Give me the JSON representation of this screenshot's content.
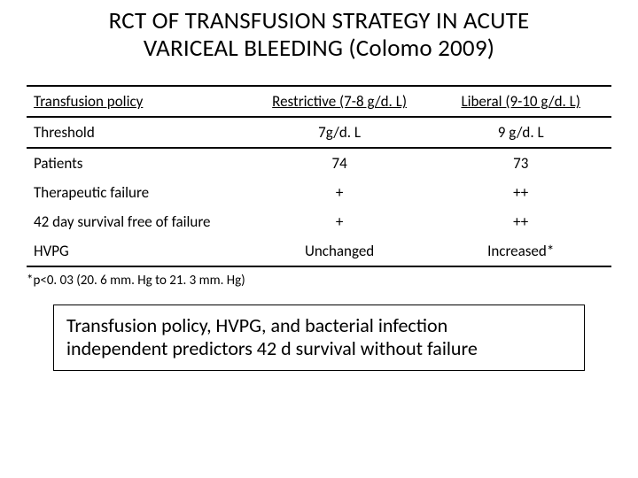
{
  "title_line1": "RCT OF TRANSFUSION STRATEGY IN ACUTE",
  "title_line2": "VARICEAL BLEEDING (Colomo 2009)",
  "table": {
    "header": {
      "c0": "Transfusion policy",
      "c1": "Restrictive (7-8 g/d. L)",
      "c2": "Liberal (9-10 g/d. L)"
    },
    "rows": [
      {
        "c0": "Threshold",
        "c1": "7g/d. L",
        "c2": "9 g/d. L",
        "cls": "row-threshold"
      },
      {
        "c0": "Patients",
        "c1": "74",
        "c2": "73",
        "cls": ""
      },
      {
        "c0": "Therapeutic failure",
        "c1": "+",
        "c2": "++",
        "cls": ""
      },
      {
        "c0": "42 day survival free of failure",
        "c1": "+",
        "c2": "++",
        "cls": ""
      },
      {
        "c0": "HVPG",
        "c1": "Unchanged",
        "c2": "Increased*",
        "cls": "row-last"
      }
    ]
  },
  "footnote": "*p<0. 03 (20. 6 mm. Hg to 21. 3 mm. Hg)",
  "callout_line1": "Transfusion policy, HVPG, and bacterial infection",
  "callout_line2": "independent predictors 42 d survival without failure",
  "style": {
    "background": "#ffffff",
    "text_color": "#000000",
    "border_color": "#000000",
    "title_fontsize": 27,
    "table_fontsize": 17,
    "footnote_fontsize": 15,
    "callout_fontsize": 22
  }
}
